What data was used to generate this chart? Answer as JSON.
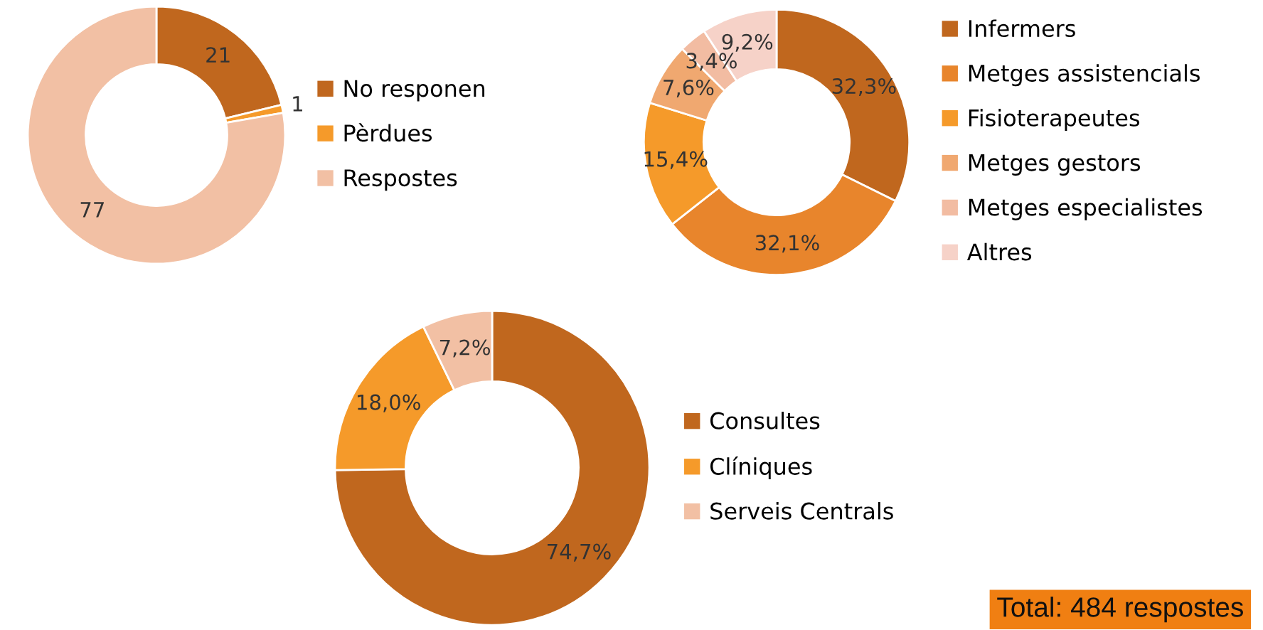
{
  "chart_data": [
    {
      "type": "donut",
      "categories": [
        "No responen",
        "Pèrdues",
        "Respostes"
      ],
      "values": [
        21,
        1,
        77
      ],
      "colors": [
        "#c0671e",
        "#f59a2a",
        "#f2c0a4"
      ],
      "value_labels": [
        "21",
        "1",
        "77"
      ],
      "legend": "right"
    },
    {
      "type": "donut",
      "categories": [
        "Infermers",
        "Metges assistencials",
        "Fisioterapeutes",
        "Metges gestors",
        "Metges especialistes",
        "Altres"
      ],
      "values": [
        32.3,
        32.1,
        15.4,
        7.6,
        3.4,
        9.2
      ],
      "colors": [
        "#c0671e",
        "#e8852c",
        "#f59a2a",
        "#f0a870",
        "#f2bca2",
        "#f6d2c8"
      ],
      "value_labels": [
        "32,3%",
        "32,1%",
        "15,4%",
        "7,6%",
        "3,4%",
        "9,2%"
      ],
      "legend": "right"
    },
    {
      "type": "donut",
      "categories": [
        "Consultes",
        "Clíniques",
        "Serveis Centrals"
      ],
      "values": [
        74.7,
        18.0,
        7.2
      ],
      "colors": [
        "#c0671e",
        "#f59a2a",
        "#f2c0a4"
      ],
      "value_labels": [
        "74,7%",
        "18,0%",
        "7,2%"
      ],
      "legend": "right",
      "annotations": [
        "Total: 484 respostes"
      ]
    }
  ]
}
